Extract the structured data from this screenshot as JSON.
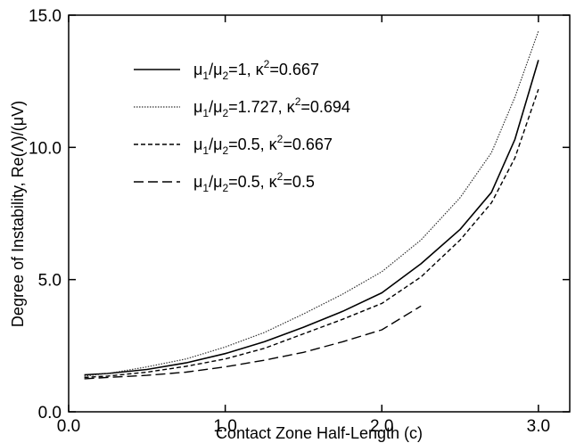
{
  "chart_data": {
    "type": "line",
    "xlabel": "Contact Zone Half-Length (c)",
    "ylabel": "Degree of Instability, Re(Λ)/(μV)",
    "xlim": [
      0.0,
      3.2
    ],
    "ylim": [
      0.0,
      15.0
    ],
    "x_ticks": [
      "0.0",
      "1.0",
      "2.0",
      "3.0"
    ],
    "y_ticks": [
      "0.0",
      "5.0",
      "10.0",
      "15.0"
    ],
    "grid": false,
    "legend_position": "upper-left",
    "series": [
      {
        "name": "μ1/μ2=1, κ2=0.667",
        "label_parts": {
          "a": "μ",
          "s1": "1",
          "b": "/μ",
          "s2": "2",
          "c": "=1, κ",
          "sup": "2",
          "d": "=0.667"
        },
        "style": "solid",
        "x": [
          0.1,
          0.25,
          0.5,
          0.75,
          1.0,
          1.25,
          1.5,
          1.75,
          2.0,
          2.25,
          2.5,
          2.7,
          2.85,
          3.0
        ],
        "y": [
          1.4,
          1.45,
          1.6,
          1.85,
          2.2,
          2.65,
          3.2,
          3.8,
          4.5,
          5.6,
          6.9,
          8.3,
          10.3,
          13.3
        ]
      },
      {
        "name": "μ1/μ2=1.727, κ2=0.694",
        "label_parts": {
          "a": "μ",
          "s1": "1",
          "b": "/μ",
          "s2": "2",
          "c": "=1.727, κ",
          "sup": "2",
          "d": "=0.694"
        },
        "style": "dotted",
        "x": [
          0.1,
          0.25,
          0.5,
          0.75,
          1.0,
          1.25,
          1.5,
          1.75,
          2.0,
          2.25,
          2.5,
          2.7,
          2.85,
          3.0
        ],
        "y": [
          1.35,
          1.45,
          1.7,
          2.0,
          2.45,
          3.0,
          3.7,
          4.45,
          5.3,
          6.5,
          8.1,
          9.8,
          11.9,
          14.4
        ]
      },
      {
        "name": "μ1/μ2=0.5, κ2=0.667",
        "label_parts": {
          "a": "μ",
          "s1": "1",
          "b": "/μ",
          "s2": "2",
          "c": "=0.5, κ",
          "sup": "2",
          "d": "=0.667"
        },
        "style": "short-dash",
        "x": [
          0.1,
          0.25,
          0.5,
          0.75,
          1.0,
          1.25,
          1.5,
          1.75,
          2.0,
          2.25,
          2.5,
          2.7,
          2.85,
          3.0
        ],
        "y": [
          1.3,
          1.35,
          1.5,
          1.72,
          2.0,
          2.4,
          2.95,
          3.5,
          4.1,
          5.1,
          6.5,
          7.9,
          9.6,
          12.2
        ]
      },
      {
        "name": "μ1/μ2=0.5, κ2=0.5",
        "label_parts": {
          "a": "μ",
          "s1": "1",
          "b": "/μ",
          "s2": "2",
          "c": "=0.5, κ",
          "sup": "2",
          "d": "=0.5"
        },
        "style": "long-dash",
        "x": [
          0.1,
          0.25,
          0.5,
          0.75,
          1.0,
          1.25,
          1.5,
          1.75,
          2.0,
          2.25
        ],
        "y": [
          1.25,
          1.3,
          1.38,
          1.5,
          1.7,
          1.95,
          2.25,
          2.65,
          3.1,
          4.0
        ]
      }
    ]
  }
}
